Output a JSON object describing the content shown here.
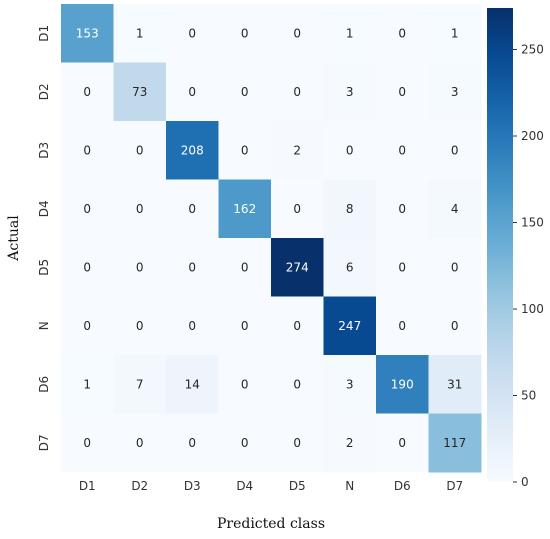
{
  "chart_data": {
    "type": "heatmap",
    "title": "",
    "xlabel": "Predicted class",
    "ylabel": "Actual",
    "x_categories": [
      "D1",
      "D2",
      "D3",
      "D4",
      "D5",
      "N",
      "D6",
      "D7"
    ],
    "y_categories": [
      "D1",
      "D2",
      "D3",
      "D4",
      "D5",
      "N",
      "D6",
      "D7"
    ],
    "values": [
      [
        153,
        1,
        0,
        0,
        0,
        1,
        0,
        1
      ],
      [
        0,
        73,
        0,
        0,
        0,
        3,
        0,
        3
      ],
      [
        0,
        0,
        208,
        0,
        2,
        0,
        0,
        0
      ],
      [
        0,
        0,
        0,
        162,
        0,
        8,
        0,
        4
      ],
      [
        0,
        0,
        0,
        0,
        274,
        6,
        0,
        0
      ],
      [
        0,
        0,
        0,
        0,
        0,
        247,
        0,
        0
      ],
      [
        1,
        7,
        14,
        0,
        0,
        3,
        190,
        31
      ],
      [
        0,
        0,
        0,
        0,
        0,
        2,
        0,
        117
      ]
    ],
    "colorbar": {
      "min": 0,
      "max": 274,
      "ticks": [
        0,
        50,
        100,
        150,
        200,
        250
      ],
      "colormap": "Blues"
    },
    "colors": {
      "low": "#f7fbff",
      "high": "#08306b"
    }
  }
}
